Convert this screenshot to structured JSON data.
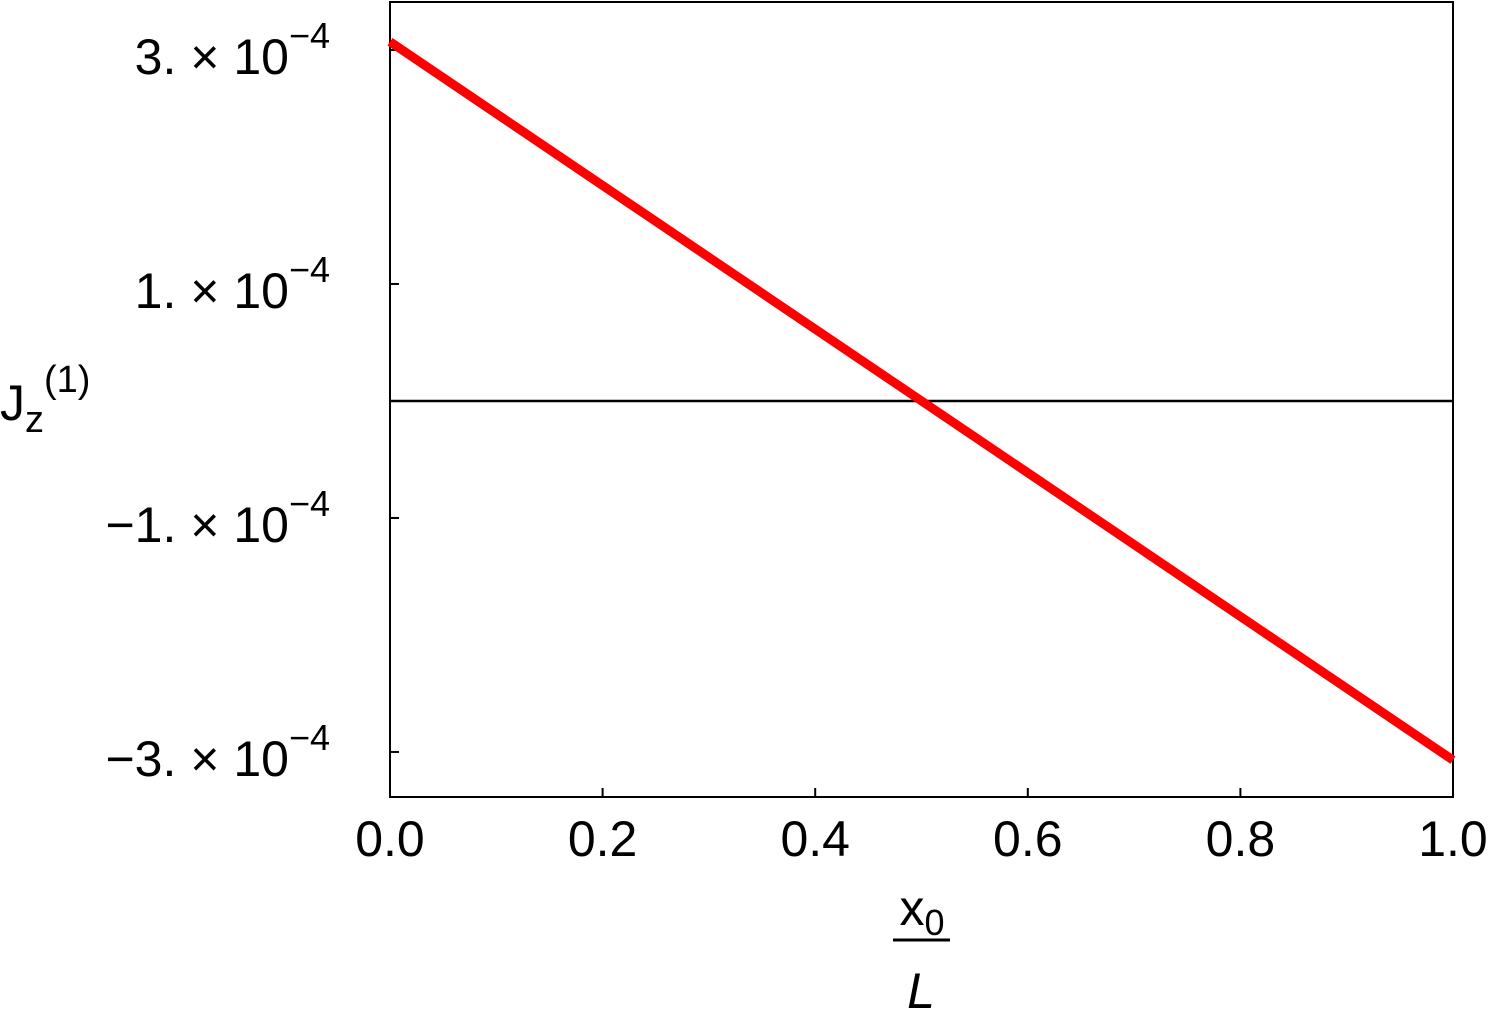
{
  "chart_data": {
    "type": "line",
    "ylabel": {
      "base": "J",
      "sub": "z",
      "sup": "(1)"
    },
    "xlabel": {
      "numerator": "x",
      "numerator_sub": "0",
      "denominator": "L"
    },
    "x": [
      0,
      1
    ],
    "series": [
      {
        "color": "#ff0000",
        "values": [
          0.000307,
          -0.000307
        ]
      }
    ],
    "xlim": [
      0,
      1
    ],
    "ylim": [
      -0.0003385,
      0.000341
    ],
    "xticks": [
      {
        "value": 0,
        "label": "0.0"
      },
      0.2,
      0.4,
      0.6,
      0.8,
      {
        "value": 1,
        "label": "1.0"
      }
    ],
    "yticks": [
      {
        "value": -0.0003,
        "label": "−3. × 10",
        "exponent": "−4"
      },
      {
        "value": -0.0001,
        "label": "−1. × 10",
        "exponent": "−4"
      },
      {
        "value": 0.0001,
        "label": "1. × 10",
        "exponent": "−4"
      },
      {
        "value": 0.0003,
        "label": "3. × 10",
        "exponent": "−4"
      }
    ],
    "grid": false
  }
}
